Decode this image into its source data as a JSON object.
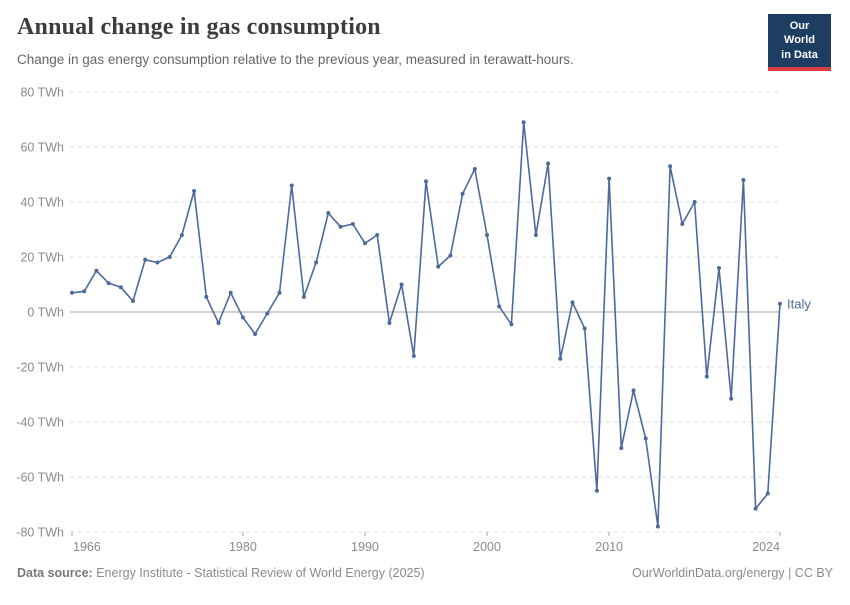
{
  "header": {
    "title": "Annual change in gas consumption",
    "subtitle": "Change in gas energy consumption relative to the previous year, measured in terawatt-hours."
  },
  "logo": {
    "line1": "Our World",
    "line2": "in Data",
    "bg_color": "#1d3d63",
    "bar_color": "#dc3d43"
  },
  "chart_data": {
    "type": "line",
    "title": "Annual change in gas consumption",
    "xlabel": "",
    "ylabel": "TWh",
    "unit": "TWh",
    "ylim": [
      -80,
      80
    ],
    "yticks": [
      80,
      60,
      40,
      20,
      0,
      -20,
      -40,
      -60,
      -80
    ],
    "xticks": [
      1966,
      1980,
      1990,
      2000,
      2010,
      2024
    ],
    "grid": true,
    "gridline_color": "#dcdcdc",
    "zero_line_color": "#a3a3a3",
    "axis_label_color": "#8b8b8b",
    "legend_position": "end-of-line",
    "series": [
      {
        "name": "Italy",
        "color": "#4c6a9c",
        "x": [
          1966,
          1967,
          1968,
          1969,
          1970,
          1971,
          1972,
          1973,
          1974,
          1975,
          1976,
          1977,
          1978,
          1979,
          1980,
          1981,
          1982,
          1983,
          1984,
          1985,
          1986,
          1987,
          1988,
          1989,
          1990,
          1991,
          1992,
          1993,
          1994,
          1995,
          1996,
          1997,
          1998,
          1999,
          2000,
          2001,
          2002,
          2003,
          2004,
          2005,
          2006,
          2007,
          2008,
          2009,
          2010,
          2011,
          2012,
          2013,
          2014,
          2015,
          2016,
          2017,
          2018,
          2019,
          2020,
          2021,
          2022,
          2023,
          2024
        ],
        "values": [
          7,
          7.5,
          15,
          10.5,
          9,
          4,
          19,
          18,
          20,
          28,
          44,
          5.5,
          -4,
          7,
          -2,
          -8,
          -0.5,
          7,
          46,
          5.5,
          18,
          36,
          31,
          32,
          25,
          28,
          -4,
          10,
          -16,
          47.5,
          16.5,
          20.5,
          43,
          52,
          28,
          2,
          -4.5,
          69,
          28,
          54,
          -17,
          3.5,
          -6,
          -65,
          48.5,
          -49.5,
          -28.5,
          -46,
          -78,
          53,
          32,
          40,
          -23.5,
          16,
          -31.5,
          48,
          -71.5,
          -66,
          3
        ]
      }
    ]
  },
  "footer": {
    "source_label": "Data source:",
    "source_text": " Energy Institute - Statistical Review of World Energy (2025)",
    "link_text": "OurWorldinData.org/energy | CC BY"
  }
}
